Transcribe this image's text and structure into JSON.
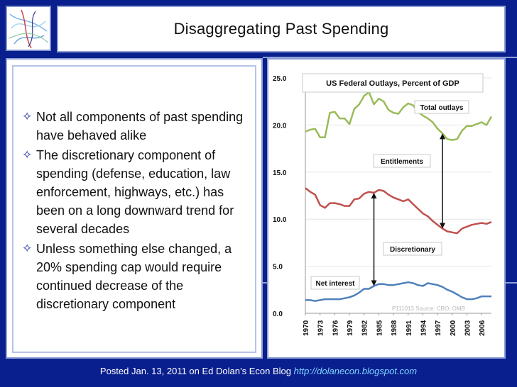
{
  "slide": {
    "title": "Disaggregating Past Spending",
    "bullets": [
      "Not all components of past spending have behaved alike",
      "The discretionary component of spending (defense, education, law enforcement, highways, etc.) has been on a long downward trend for several decades",
      "Unless something else changed, a 20% spending cap would require continued decrease of  the discretionary component"
    ],
    "bullet_icon": "diamond-star-icon",
    "logo_icon": "decorative-lines-icon",
    "footer": {
      "text": "Posted Jan. 13, 2011 on Ed Dolan’s Econ Blog",
      "link": "http://dolanecon.blogspot.com"
    }
  },
  "colors": {
    "background": "#0a1f8e",
    "total": "#9bbb59",
    "discretionary": "#c0504d",
    "net_interest": "#4f81bd"
  },
  "chart_data": {
    "type": "line",
    "title": "US Federal Outlays, Percent of GDP",
    "source_note": "P111013 Source: CBO, OMB",
    "ylim": [
      0,
      25
    ],
    "yticks": [
      "0.0",
      "5.0",
      "10.0",
      "15.0",
      "20.0",
      "25.0"
    ],
    "xticks": [
      "1970",
      "1973",
      "1976",
      "1979",
      "1982",
      "1985",
      "1988",
      "1991",
      "1994",
      "1997",
      "2000",
      "2003",
      "2006"
    ],
    "x": [
      1970,
      1971,
      1972,
      1973,
      1974,
      1975,
      1976,
      1977,
      1978,
      1979,
      1980,
      1981,
      1982,
      1983,
      1984,
      1985,
      1986,
      1987,
      1988,
      1989,
      1990,
      1991,
      1992,
      1993,
      1994,
      1995,
      1996,
      1997,
      1998,
      1999,
      2000,
      2001,
      2002,
      2003,
      2004,
      2005,
      2006,
      2007,
      2008
    ],
    "series": [
      {
        "name": "Total outlays",
        "key": "total",
        "values": [
          19.3,
          19.5,
          19.6,
          18.7,
          18.7,
          21.3,
          21.4,
          20.7,
          20.7,
          20.1,
          21.7,
          22.2,
          23.1,
          23.5,
          22.2,
          22.8,
          22.5,
          21.6,
          21.3,
          21.2,
          21.9,
          22.3,
          22.1,
          21.4,
          21.0,
          20.7,
          20.3,
          19.6,
          19.1,
          18.5,
          18.4,
          18.5,
          19.4,
          19.9,
          19.9,
          20.1,
          20.3,
          20.0,
          20.9
        ]
      },
      {
        "name": "Discretionary",
        "key": "discretionary",
        "values": [
          13.3,
          12.9,
          12.6,
          11.5,
          11.2,
          11.7,
          11.7,
          11.6,
          11.4,
          11.4,
          12.1,
          12.2,
          12.7,
          12.9,
          12.8,
          13.1,
          13.0,
          12.6,
          12.3,
          12.1,
          11.9,
          12.1,
          11.6,
          11.1,
          10.6,
          10.3,
          9.8,
          9.4,
          9.0,
          8.7,
          8.6,
          8.5,
          9.0,
          9.2,
          9.4,
          9.5,
          9.6,
          9.5,
          9.7
        ]
      },
      {
        "name": "Net interest",
        "key": "net_interest",
        "values": [
          1.4,
          1.4,
          1.3,
          1.4,
          1.5,
          1.5,
          1.5,
          1.5,
          1.6,
          1.7,
          1.9,
          2.2,
          2.6,
          2.6,
          2.9,
          3.1,
          3.1,
          3.0,
          3.0,
          3.1,
          3.2,
          3.3,
          3.2,
          3.0,
          2.9,
          3.2,
          3.1,
          3.0,
          2.8,
          2.5,
          2.3,
          2.0,
          1.7,
          1.5,
          1.5,
          1.6,
          1.8,
          1.8,
          1.8
        ]
      }
    ],
    "annotations": [
      {
        "text": "Total outlays",
        "target": "total"
      },
      {
        "text": "Entitlements",
        "target": "gap-total-discretionary"
      },
      {
        "text": "Discretionary",
        "target": "discretionary"
      },
      {
        "text": "Net interest",
        "target": "net_interest"
      }
    ]
  }
}
